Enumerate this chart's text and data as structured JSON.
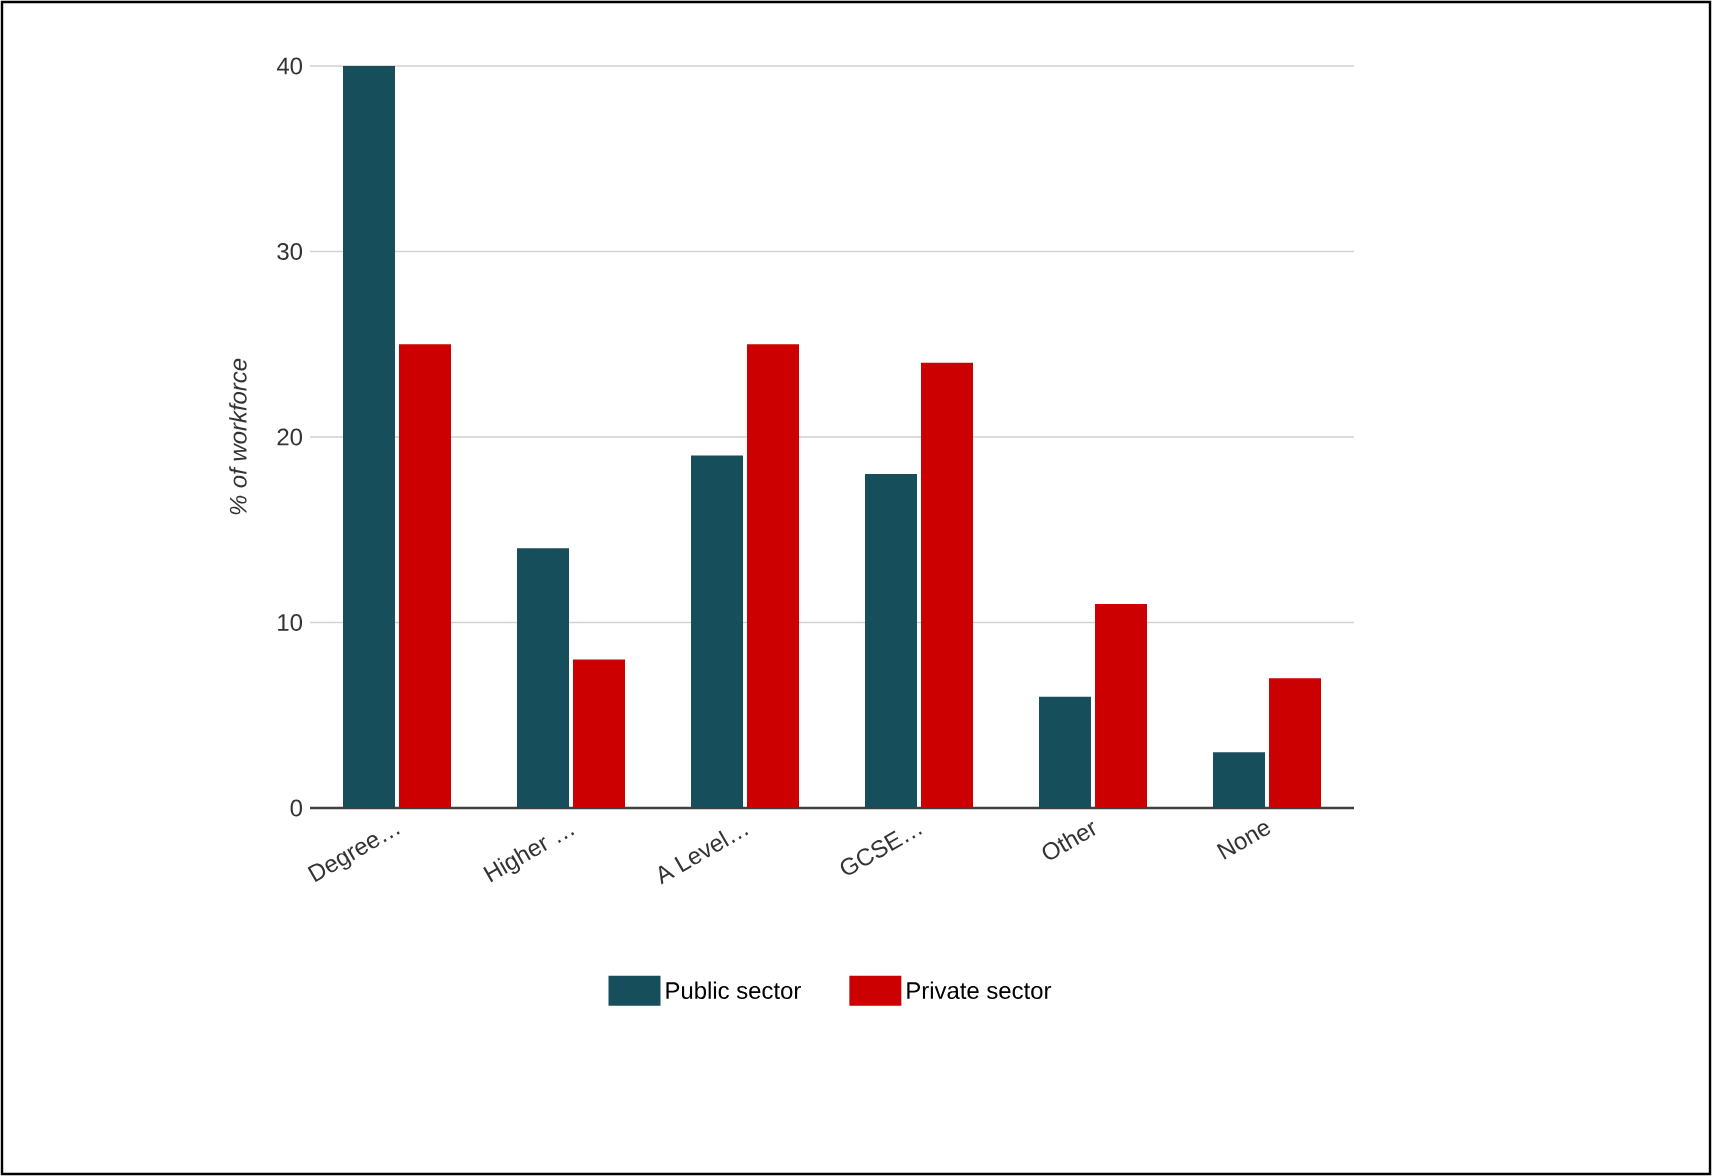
{
  "chart_data": {
    "type": "bar",
    "ylabel": "% of workforce",
    "categories": [
      "Degree…",
      "Higher …",
      "A Level…",
      "GCSE…",
      "Other",
      "None"
    ],
    "series": [
      {
        "name": "Public sector",
        "color": "#164f5b",
        "values": [
          40,
          14,
          19,
          18,
          6,
          3
        ]
      },
      {
        "name": "Private sector",
        "color": "#cc0000",
        "values": [
          25,
          8,
          25,
          24,
          11,
          7
        ]
      }
    ],
    "ylim": [
      0,
      40
    ],
    "yticks": [
      0,
      10,
      20,
      30,
      40
    ],
    "grid": "y",
    "legend": "bottom"
  }
}
